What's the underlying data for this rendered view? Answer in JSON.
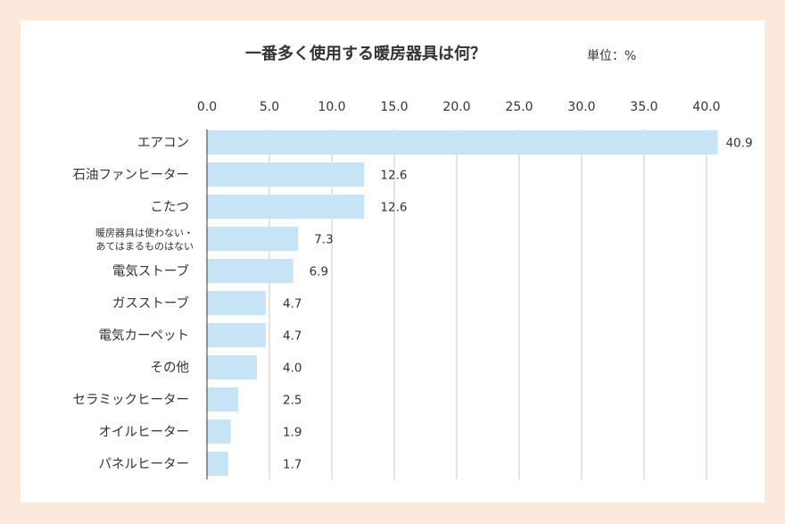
{
  "chart_data": {
    "type": "bar",
    "orientation": "horizontal",
    "title": "一番多く使用する暖房器具は何？",
    "unit_label": "単位：%",
    "xlim": [
      0,
      40.0
    ],
    "ticks": [
      "0.0",
      "5.0",
      "10.0",
      "15.0",
      "20.0",
      "25.0",
      "30.0",
      "35.0",
      "40.0"
    ],
    "grid": true,
    "categories": [
      "エアコン",
      "石油ファンヒーター",
      "こたつ",
      "暖房器具は使わない・\nあてはまるものはない",
      "電気ストーブ",
      "ガスストーブ",
      "電気カーペット",
      "その他",
      "セラミックヒーター",
      "オイルヒーター",
      "パネルヒーター"
    ],
    "values": [
      40.9,
      12.6,
      12.6,
      7.3,
      6.9,
      4.7,
      4.7,
      4.0,
      2.5,
      1.9,
      1.7
    ],
    "value_labels": [
      "40.9",
      "12.6",
      "12.6",
      "7.3",
      "6.9",
      "4.7",
      "4.7",
      "4.0",
      "2.5",
      "1.9",
      "1.7"
    ],
    "colors": {
      "bar": "#c7e3f6",
      "grid": "#c9c9c9",
      "axis": "#555555",
      "background": "#fde9dc",
      "card": "#ffffff"
    }
  }
}
